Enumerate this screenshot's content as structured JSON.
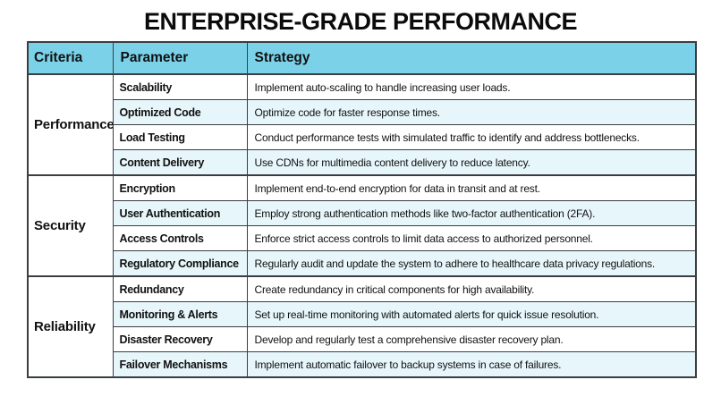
{
  "title": "ENTERPRISE-GRADE PERFORMANCE",
  "colors": {
    "header_bg": "#7bd2e8",
    "alt_row_bg": "#e6f6fa",
    "border": "#3a3e42",
    "text": "#111111"
  },
  "table": {
    "headers": [
      "Criteria",
      "Parameter",
      "Strategy"
    ],
    "sections": [
      {
        "criteria": "Performance",
        "rows": [
          {
            "parameter": "Scalability",
            "strategy": "Implement auto-scaling to handle increasing user loads."
          },
          {
            "parameter": "Optimized Code",
            "strategy": "Optimize code for faster response times."
          },
          {
            "parameter": "Load Testing",
            "strategy": "Conduct performance tests with simulated traffic to identify and address bottlenecks."
          },
          {
            "parameter": "Content Delivery",
            "strategy": "Use CDNs for multimedia content delivery to reduce latency."
          }
        ]
      },
      {
        "criteria": "Security",
        "rows": [
          {
            "parameter": "Encryption",
            "strategy": "Implement end-to-end encryption for data in transit and at rest."
          },
          {
            "parameter": "User Authentication",
            "strategy": "Employ strong authentication methods like two-factor authentication (2FA)."
          },
          {
            "parameter": "Access Controls",
            "strategy": "Enforce strict access controls to limit data access to authorized personnel."
          },
          {
            "parameter": "Regulatory Compliance",
            "strategy": "Regularly audit and update the system to adhere to healthcare data privacy regulations."
          }
        ]
      },
      {
        "criteria": "Reliability",
        "rows": [
          {
            "parameter": "Redundancy",
            "strategy": "Create redundancy in critical components for high availability."
          },
          {
            "parameter": "Monitoring & Alerts",
            "strategy": "Set up real-time monitoring with automated alerts for quick issue resolution."
          },
          {
            "parameter": "Disaster Recovery",
            "strategy": "Develop and regularly test a comprehensive disaster recovery plan."
          },
          {
            "parameter": "Failover Mechanisms",
            "strategy": "Implement automatic failover to backup systems in case of failures."
          }
        ]
      }
    ]
  }
}
